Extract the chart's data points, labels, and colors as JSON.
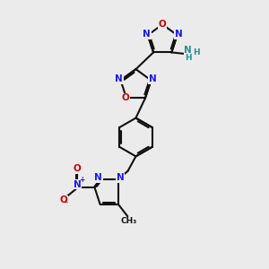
{
  "bg_color": "#ebebeb",
  "bond_color": "#111111",
  "N_color": "#1a1aee",
  "O_color": "#cc0000",
  "NH_color": "#2a9090",
  "lw": 1.5,
  "fs": 7.5,
  "xlim": [
    0,
    10
  ],
  "ylim": [
    0,
    10
  ]
}
